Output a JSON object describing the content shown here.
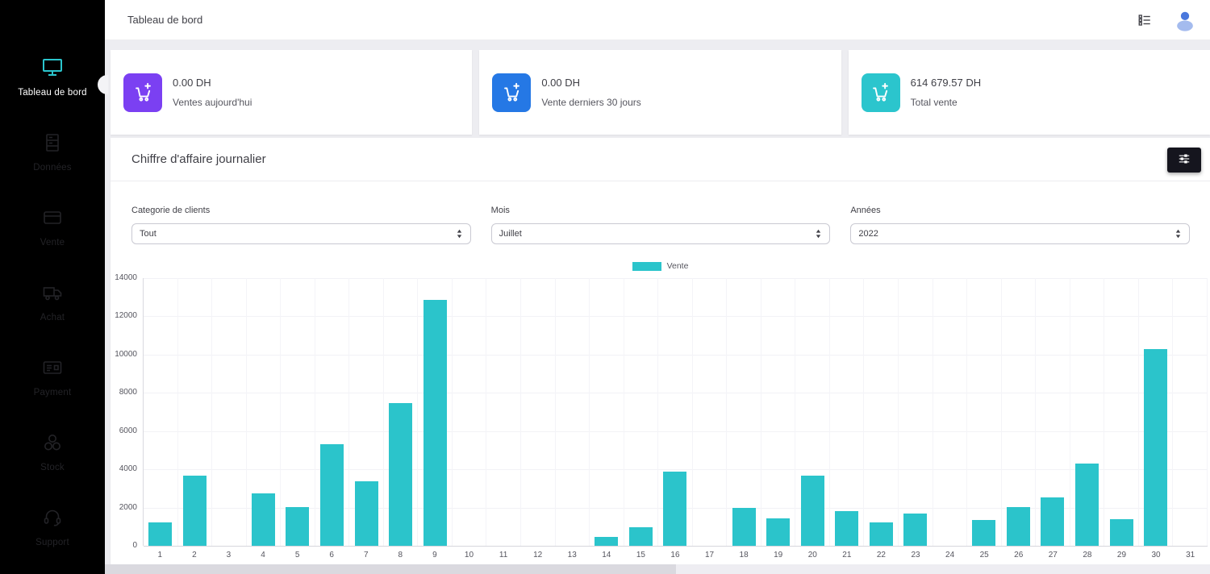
{
  "topbar": {
    "title": "Tableau de bord",
    "icons": [
      "list-check-icon",
      "user-avatar-icon"
    ]
  },
  "sidebar": {
    "items": [
      {
        "label": "Tableau de bord",
        "icon": "monitor-icon",
        "active": true
      },
      {
        "label": "Données",
        "icon": "database-icon",
        "active": false
      },
      {
        "label": "Vente",
        "icon": "sale-card-icon",
        "active": false
      },
      {
        "label": "Achat",
        "icon": "truck-icon",
        "active": false
      },
      {
        "label": "Payment",
        "icon": "payment-icon",
        "active": false
      },
      {
        "label": "Stock",
        "icon": "stock-boxes-icon",
        "active": false
      },
      {
        "label": "Support",
        "icon": "headset-icon",
        "active": false
      }
    ]
  },
  "cards": [
    {
      "value": "0.00 DH",
      "label": "Ventes aujourd'hui",
      "icon": "cart-plus-icon",
      "color": "#7b40f2"
    },
    {
      "value": "0.00 DH",
      "label": "Vente derniers 30 jours",
      "icon": "cart-plus-icon",
      "color": "#2578e5"
    },
    {
      "value": "614 679.57 DH",
      "label": "Total vente",
      "icon": "cart-plus-icon",
      "color": "#2bc5cd"
    }
  ],
  "panel": {
    "title": "Chiffre d'affaire journalier",
    "filter_button_icon": "sliders-icon",
    "filters": [
      {
        "label": "Categorie de clients",
        "value": "Tout"
      },
      {
        "label": "Mois",
        "value": "Juillet"
      },
      {
        "label": "Années",
        "value": "2022"
      }
    ]
  },
  "chart_data": {
    "type": "bar",
    "title": "Chiffre d'affaire journalier",
    "legend": [
      "Vente"
    ],
    "legend_position": "top-center",
    "xlabel": "",
    "ylabel": "",
    "ylim": [
      0,
      14000
    ],
    "ytick_step": 2000,
    "grid": true,
    "bar_color": "#2bc4cb",
    "categories": [
      "1",
      "2",
      "3",
      "4",
      "5",
      "6",
      "7",
      "8",
      "9",
      "10",
      "11",
      "12",
      "13",
      "14",
      "15",
      "16",
      "17",
      "18",
      "19",
      "20",
      "21",
      "22",
      "23",
      "24",
      "25",
      "26",
      "27",
      "28",
      "29",
      "30",
      "31"
    ],
    "values": [
      1230,
      3690,
      0,
      2760,
      2030,
      5300,
      3360,
      7450,
      12880,
      0,
      0,
      0,
      0,
      460,
      950,
      3870,
      0,
      1980,
      1430,
      3680,
      1810,
      1230,
      1680,
      0,
      1370,
      2010,
      2530,
      4320,
      1390,
      10300,
      0
    ]
  },
  "colors": {
    "sidebar_bg": "#000000",
    "accent_teal": "#2bc5cd",
    "card_purple": "#7b40f2",
    "card_blue": "#2578e5",
    "page_bg": "#ededf1",
    "avatar_blue": "#4a78dd"
  }
}
